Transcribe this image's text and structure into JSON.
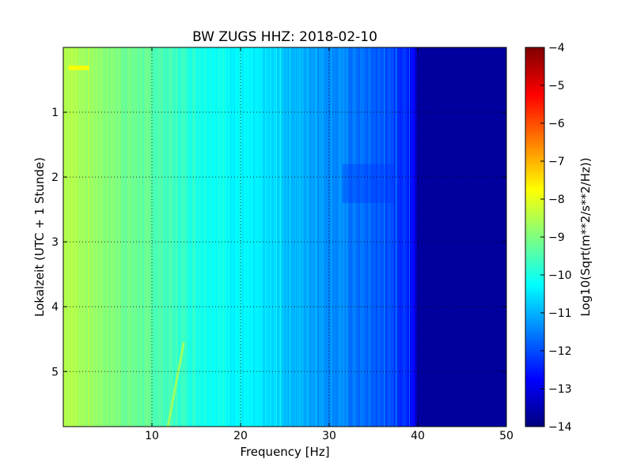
{
  "chart_data": {
    "type": "heatmap",
    "title": "BW ZUGS HHZ: 2018-02-10",
    "xlabel": "Frequency [Hz]",
    "ylabel": "Lokalzeit (UTC + 1 Stunde)",
    "xlim": [
      0,
      50
    ],
    "ylim": [
      0,
      5.85
    ],
    "y_inverted": true,
    "x_ticks": [
      10,
      20,
      30,
      40,
      50
    ],
    "y_ticks": [
      1,
      2,
      3,
      4,
      5
    ],
    "grid": true,
    "colorbar": {
      "label": "Log10(Sqrt(m**2/s**2/Hz))",
      "range": [
        -14,
        -4
      ],
      "ticks": [
        -4,
        -5,
        -6,
        -7,
        -8,
        -9,
        -10,
        -11,
        -12,
        -13,
        -14
      ],
      "colormap": "jet"
    },
    "spectral_profile": {
      "frequency_hz": [
        0,
        5,
        10,
        15,
        20,
        25,
        30,
        35,
        38,
        39.5,
        40,
        50
      ],
      "level_log10": [
        -8.4,
        -8.9,
        -9.4,
        -9.9,
        -10.3,
        -10.8,
        -11.3,
        -11.8,
        -12.2,
        -12.6,
        -13.7,
        -13.7
      ]
    }
  }
}
